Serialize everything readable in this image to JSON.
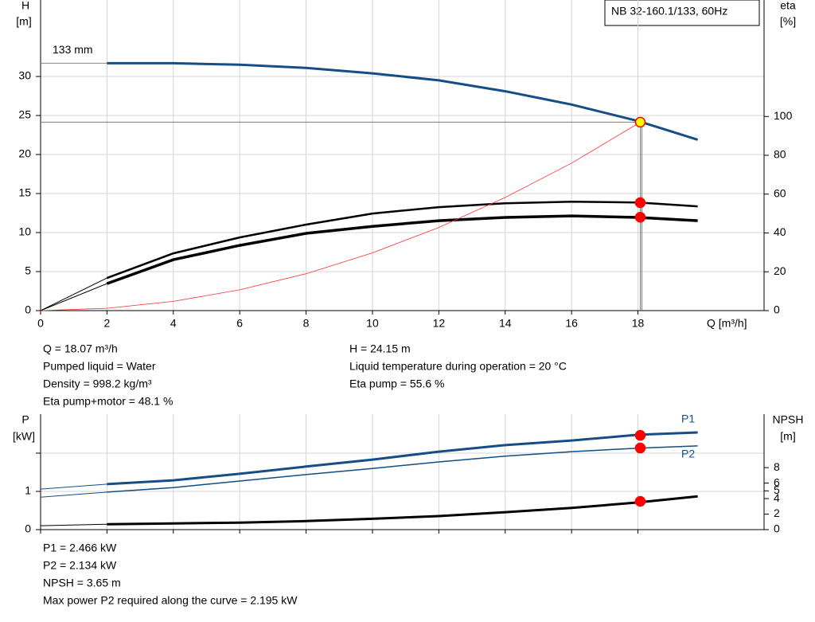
{
  "chart_data": [
    {
      "type": "line",
      "title": "NB 32-160.1/133, 60Hz",
      "x_label": "Q [m³/h]",
      "y_label": "H",
      "y_unit": "[m]",
      "y2_label": "eta",
      "y2_unit": "[%]",
      "xlim": [
        0,
        21.8
      ],
      "xticks": [
        0,
        2,
        4,
        6,
        8,
        10,
        12,
        14,
        16,
        18
      ],
      "ylim": [
        0,
        39.8
      ],
      "yticks": [
        0,
        5,
        10,
        15,
        20,
        25,
        30
      ],
      "y2lim": [
        0,
        160
      ],
      "y2ticks": [
        0,
        20,
        40,
        60,
        80,
        100
      ],
      "grid": true,
      "duty_x": 18.07,
      "series": [
        {
          "color": "#154e86",
          "width": 3,
          "x": [
            2,
            4,
            6,
            8,
            10,
            12,
            14,
            16,
            18,
            19.8
          ],
          "values": [
            31.7,
            31.7,
            31.5,
            31.1,
            30.4,
            29.5,
            28.1,
            26.4,
            24.3,
            21.9
          ],
          "annotation": "133 mm",
          "duty": 24.15,
          "marker_color": "#ffff00"
        },
        {
          "color": "#000000",
          "width": 2.5,
          "axis": "y2",
          "thin_start": true,
          "x": [
            0,
            2,
            4,
            6,
            8,
            10,
            12,
            14,
            16,
            18,
            19.8
          ],
          "values": [
            0,
            16.8,
            29.5,
            37.7,
            44.3,
            50,
            53.3,
            55.3,
            56.1,
            55.7,
            53.7
          ],
          "duty": 55.6,
          "marker_color": "#ff0000"
        },
        {
          "color": "#000000",
          "width": 3.5,
          "axis": "y2",
          "thin_start": true,
          "x": [
            0,
            2,
            4,
            6,
            8,
            10,
            12,
            14,
            16,
            18,
            19.8
          ],
          "values": [
            0,
            13.9,
            26.2,
            33.6,
            39.8,
            43.4,
            46.3,
            48,
            48.8,
            48,
            46.3
          ],
          "duty": 48.1,
          "marker_color": "#ff0000"
        },
        {
          "color": "#ff3030",
          "width": 0.8,
          "x": [
            0,
            2,
            4,
            6,
            8,
            10,
            12,
            14,
            16,
            18.07
          ],
          "values": [
            0,
            0.3,
            1.18,
            2.66,
            4.73,
            7.4,
            10.65,
            14.5,
            18.9,
            24.15
          ]
        }
      ]
    },
    {
      "type": "line",
      "y_label": "P",
      "y_unit": "[kW]",
      "y2_label": "NPSH",
      "y2_unit": "[m]",
      "xlim": [
        0,
        21.8
      ],
      "xticks": [
        0,
        2,
        4,
        6,
        8,
        10,
        12,
        14,
        16,
        18
      ],
      "xtick_labels": false,
      "ylim": [
        0,
        3.02
      ],
      "yticks": [
        0,
        1
      ],
      "ytick_marks": [
        2
      ],
      "y2lim": [
        0,
        14.9
      ],
      "y2ticks": [
        0,
        2,
        4,
        5,
        6,
        8
      ],
      "grid": true,
      "duty_x": 18.07,
      "series": [
        {
          "name": "P1",
          "label_side": "above",
          "color": "#154e86",
          "width": 3,
          "thin_start": true,
          "x": [
            0,
            2,
            4,
            6,
            8,
            10,
            12,
            14,
            16,
            18,
            19.8
          ],
          "values": [
            1.06,
            1.19,
            1.29,
            1.46,
            1.65,
            1.83,
            2.04,
            2.21,
            2.33,
            2.48,
            2.54
          ],
          "duty": 2.466,
          "marker_color": "#ff0000"
        },
        {
          "name": "P2",
          "label_side": "below",
          "color": "#154e86",
          "width": 1.5,
          "thin_start": true,
          "x": [
            0,
            2,
            4,
            6,
            8,
            10,
            12,
            14,
            16,
            18,
            19.8
          ],
          "values": [
            0.85,
            0.98,
            1.1,
            1.27,
            1.44,
            1.6,
            1.77,
            1.92,
            2.04,
            2.13,
            2.19
          ],
          "duty": 2.134,
          "marker_color": "#ff0000"
        },
        {
          "color": "#000000",
          "width": 3,
          "axis": "y2",
          "thin_start": true,
          "x": [
            0,
            2,
            4,
            6,
            8,
            10,
            12,
            14,
            16,
            18,
            19.8
          ],
          "values": [
            0.5,
            0.7,
            0.8,
            0.9,
            1.1,
            1.4,
            1.75,
            2.25,
            2.8,
            3.5,
            4.3
          ],
          "duty": 3.65,
          "marker_color": "#ff0000"
        }
      ]
    }
  ],
  "readouts": {
    "top_left": [
      "Q = 18.07 m³/h",
      "Pumped liquid = Water",
      "Density = 998.2 kg/m³",
      "Eta pump+motor = 48.1 %"
    ],
    "top_right": [
      "H = 24.15 m",
      "Liquid temperature during operation = 20 °C",
      "Eta pump = 55.6 %"
    ],
    "bottom": [
      "P1 = 2.466 kW",
      "P2 = 2.134 kW",
      "NPSH = 3.65 m",
      "Max power P2 required along the curve = 2.195 kW"
    ]
  }
}
